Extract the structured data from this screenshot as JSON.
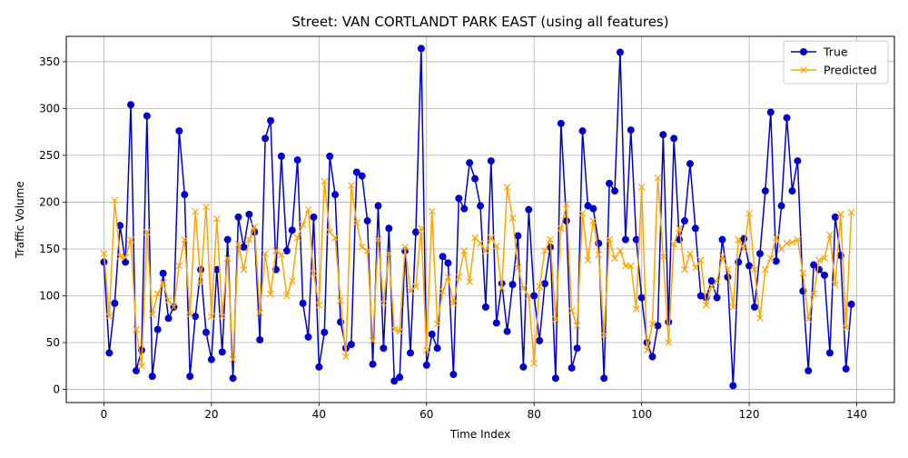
{
  "chart_data": {
    "type": "line",
    "title": "Street: VAN CORTLANDT PARK EAST (using all features)",
    "xlabel": "Time Index",
    "ylabel": "Traffic Volume",
    "xlim": [
      -7,
      147
    ],
    "ylim": [
      -14,
      377
    ],
    "xticks": [
      0,
      20,
      40,
      60,
      80,
      100,
      120,
      140
    ],
    "yticks": [
      0,
      50,
      100,
      150,
      200,
      250,
      300,
      350
    ],
    "grid": true,
    "legend_position": "top-right",
    "series": [
      {
        "name": "True",
        "color": "#0000cd",
        "marker": "circle",
        "values": [
          136,
          39,
          92,
          175,
          136,
          304,
          20,
          42,
          292,
          14,
          64,
          124,
          76,
          88,
          276,
          208,
          14,
          78,
          128,
          61,
          32,
          128,
          40,
          160,
          12,
          184,
          152,
          187,
          168,
          53,
          268,
          287,
          128,
          249,
          148,
          170,
          245,
          92,
          56,
          184,
          24,
          61,
          249,
          208,
          72,
          44,
          48,
          232,
          228,
          180,
          27,
          196,
          44,
          172,
          9,
          13,
          148,
          39,
          168,
          364,
          26,
          59,
          44,
          142,
          135,
          16,
          204,
          193,
          242,
          225,
          196,
          88,
          244,
          71,
          113,
          62,
          112,
          164,
          24,
          192,
          100,
          52,
          113,
          152,
          12,
          284,
          180,
          23,
          44,
          276,
          196,
          193,
          156,
          12,
          220,
          212,
          360,
          160,
          277,
          160,
          98,
          50,
          35,
          68,
          272,
          72,
          268,
          160,
          180,
          241,
          172,
          100,
          98,
          116,
          98,
          160,
          120,
          4,
          136,
          161,
          132,
          88,
          145,
          212,
          296,
          137,
          196,
          290,
          212,
          244,
          105,
          20,
          133,
          128,
          122,
          39,
          184,
          143,
          22,
          91
        ]
      },
      {
        "name": "Predicted",
        "color": "#ffa500",
        "marker": "x",
        "values": [
          145,
          78,
          202,
          142,
          141,
          160,
          64,
          25,
          168,
          80,
          102,
          114,
          95,
          88,
          132,
          160,
          80,
          190,
          114,
          195,
          78,
          182,
          78,
          140,
          32,
          155,
          128,
          160,
          174,
          82,
          145,
          102,
          148,
          144,
          100,
          116,
          162,
          176,
          192,
          124,
          90,
          222,
          168,
          162,
          95,
          35,
          218,
          178,
          152,
          148,
          52,
          160,
          92,
          145,
          64,
          62,
          152,
          105,
          110,
          172,
          42,
          190,
          70,
          105,
          120,
          92,
          120,
          148,
          115,
          162,
          156,
          148,
          162,
          153,
          108,
          216,
          183,
          130,
          108,
          100,
          28,
          110,
          148,
          160,
          75,
          172,
          198,
          84,
          68,
          188,
          138,
          180,
          144,
          58,
          160,
          140,
          148,
          132,
          132,
          86,
          216,
          42,
          70,
          226,
          142,
          50,
          155,
          172,
          128,
          145,
          130,
          138,
          90,
          110,
          115,
          142,
          128,
          88,
          160,
          150,
          188,
          128,
          76,
          128,
          140,
          162,
          150,
          156,
          157,
          160,
          124,
          75,
          102,
          138,
          140,
          165,
          112,
          187,
          66,
          189
        ]
      }
    ]
  }
}
